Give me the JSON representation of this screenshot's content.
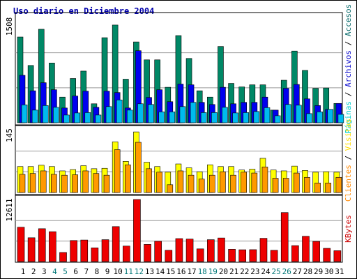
{
  "title": "Uso diario en Diciembre 2004",
  "colors": {
    "title": "#0000aa",
    "frame_border": "#000000",
    "plot_border": "#000000",
    "gridline": "#999999",
    "weekday_label": "#000000",
    "weekend_label": "#007777"
  },
  "panels": {
    "top": {
      "max_label": "1508",
      "side_label_parts": [
        {
          "text": "Páginas",
          "color": "#00cccc"
        },
        {
          "text": " / ",
          "color": "#000000"
        },
        {
          "text": "Archivos",
          "color": "#0000cc"
        },
        {
          "text": " / ",
          "color": "#000000"
        },
        {
          "text": "Accesos",
          "color": "#006666"
        }
      ]
    },
    "middle": {
      "max_label": "145",
      "side_label_parts": [
        {
          "text": "Clientes",
          "color": "#ff8800"
        },
        {
          "text": " / ",
          "color": "#000000"
        },
        {
          "text": "Visitas",
          "color": "#ffdd00"
        }
      ]
    },
    "bottom": {
      "max_label": "12611",
      "side_label_parts": [
        {
          "text": "KBytes",
          "color": "#cc0000"
        }
      ]
    }
  },
  "chart_data": {
    "type": "bar",
    "title": "Uso diario en Diciembre 2004",
    "x": [
      "1",
      "2",
      "3",
      "4",
      "5",
      "6",
      "7",
      "8",
      "9",
      "10",
      "11",
      "12",
      "13",
      "14",
      "15",
      "16",
      "17",
      "18",
      "19",
      "20",
      "21",
      "22",
      "23",
      "24",
      "25",
      "26",
      "27",
      "28",
      "29",
      "30",
      "31"
    ],
    "weekend_days": [
      "4",
      "5",
      "11",
      "12",
      "18",
      "19",
      "25",
      "26"
    ],
    "grid": true,
    "legend": "right",
    "panels": [
      {
        "name": "top",
        "ylim": [
          0,
          1508
        ],
        "series": [
          {
            "name": "Accesos",
            "color": "#008866",
            "values": [
              1220,
              815,
              1330,
              850,
              365,
              630,
              735,
              270,
              1210,
              1390,
              620,
              1150,
              895,
              895,
              505,
              1240,
              915,
              455,
              365,
              1085,
              560,
              510,
              540,
              540,
              180,
              605,
              1020,
              745,
              490,
              495,
              275
            ]
          },
          {
            "name": "Archivos",
            "color": "#0000ee",
            "values": [
              675,
              455,
              570,
              470,
              210,
              380,
              450,
              220,
              450,
              430,
              210,
              1025,
              360,
              470,
              300,
              550,
              540,
              290,
              260,
              505,
              270,
              290,
              290,
              365,
              180,
              490,
              545,
              340,
              245,
              190,
              275
            ]
          },
          {
            "name": "Páginas",
            "color": "#00bbee",
            "values": [
              255,
              180,
              245,
              220,
              110,
              140,
              145,
              110,
              230,
              325,
              180,
              270,
              260,
              155,
              155,
              230,
              290,
              145,
              145,
              220,
              140,
              145,
              160,
              215,
              100,
              260,
              250,
              130,
              155,
              190,
              120
            ]
          }
        ]
      },
      {
        "name": "middle",
        "ylim": [
          0,
          145
        ],
        "series": [
          {
            "name": "Visitas",
            "color": "#ffff00",
            "values": [
              60,
              60,
              63,
              60,
              50,
              53,
              62,
              55,
              56,
              117,
              72,
              140,
              70,
              60,
              47,
              66,
              57,
              48,
              64,
              60,
              60,
              52,
              54,
              79,
              52,
              50,
              61,
              51,
              47,
              48,
              47
            ]
          },
          {
            "name": "Clientes",
            "color": "#ff9900",
            "values": [
              42,
              44,
              50,
              42,
              40,
              41,
              50,
              44,
              40,
              99,
              64,
              116,
              55,
              47,
              18,
              50,
              40,
              31,
              40,
              48,
              40,
              47,
              45,
              59,
              33,
              33,
              45,
              35,
              22,
              22,
              35
            ]
          }
        ]
      },
      {
        "name": "bottom",
        "ylim": [
          0,
          12611
        ],
        "series": [
          {
            "name": "KBytes",
            "color": "#ee0000",
            "values": [
              6980,
              4840,
              6680,
              6070,
              1850,
              4280,
              4380,
              2790,
              4450,
              7110,
              3150,
              12611,
              3490,
              4120,
              2300,
              4670,
              4570,
              2580,
              4450,
              4800,
              2500,
              2400,
              2420,
              4730,
              2290,
              9960,
              3240,
              5140,
              4100,
              2690,
              2210
            ]
          }
        ]
      }
    ]
  }
}
